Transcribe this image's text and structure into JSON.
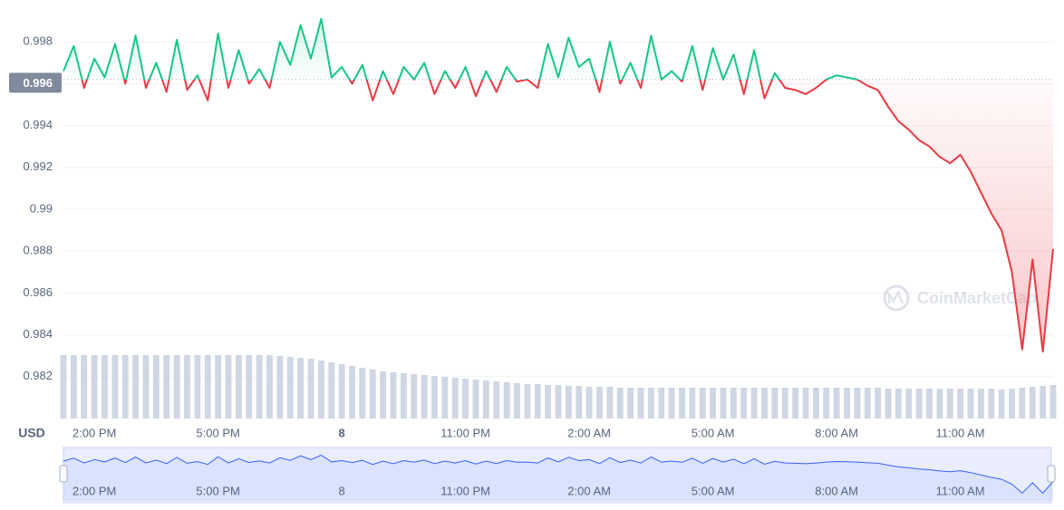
{
  "chart_data": {
    "type": "line",
    "currency": "USD",
    "watermark": "CoinMarketCap",
    "baseline": 0.9962,
    "up_color": "#16c784",
    "down_color": "#ea3943",
    "navigator_color": "#3861fb",
    "volume_color": "#cfd6e4",
    "ylim": [
      0.98,
      1.0
    ],
    "yticks": [
      0.982,
      0.984,
      0.986,
      0.988,
      0.99,
      0.992,
      0.994,
      0.996,
      0.998
    ],
    "highlight_tick": 0.996,
    "grid": true,
    "categories": [
      null,
      null,
      null,
      "2:00 PM",
      null,
      null,
      null,
      null,
      null,
      null,
      null,
      null,
      null,
      null,
      null,
      "5:00 PM",
      null,
      null,
      null,
      null,
      null,
      null,
      null,
      null,
      null,
      null,
      null,
      "8",
      null,
      null,
      null,
      null,
      null,
      null,
      null,
      null,
      null,
      null,
      null,
      "11:00 PM",
      null,
      null,
      null,
      null,
      null,
      null,
      null,
      null,
      null,
      null,
      null,
      "2:00 AM",
      null,
      null,
      null,
      null,
      null,
      null,
      null,
      null,
      null,
      null,
      null,
      "5:00 AM",
      null,
      null,
      null,
      null,
      null,
      null,
      null,
      null,
      null,
      null,
      null,
      "8:00 AM",
      null,
      null,
      null,
      null,
      null,
      null,
      null,
      null,
      null,
      null,
      null,
      "11:00 AM",
      null,
      null,
      null,
      null,
      null,
      null,
      null,
      null,
      null
    ],
    "values": [
      0.9966,
      0.9978,
      0.9958,
      0.9972,
      0.9963,
      0.9979,
      0.996,
      0.9983,
      0.9958,
      0.997,
      0.9956,
      0.9981,
      0.9957,
      0.9964,
      0.9952,
      0.9984,
      0.9958,
      0.9976,
      0.996,
      0.9967,
      0.9958,
      0.998,
      0.9969,
      0.9988,
      0.9972,
      0.9991,
      0.9963,
      0.9968,
      0.996,
      0.9969,
      0.9952,
      0.9966,
      0.9955,
      0.9968,
      0.9962,
      0.997,
      0.9955,
      0.9966,
      0.9958,
      0.9968,
      0.9954,
      0.9966,
      0.9956,
      0.9968,
      0.9961,
      0.9962,
      0.9958,
      0.9979,
      0.9963,
      0.9982,
      0.9968,
      0.9972,
      0.9956,
      0.998,
      0.996,
      0.997,
      0.9958,
      0.9983,
      0.9962,
      0.9966,
      0.9961,
      0.9978,
      0.9957,
      0.9977,
      0.9962,
      0.9974,
      0.9955,
      0.9976,
      0.9953,
      0.9965,
      0.9958,
      0.9957,
      0.9955,
      0.9958,
      0.9962,
      0.9964,
      0.9963,
      0.9962,
      0.9959,
      0.9957,
      0.9949,
      0.9942,
      0.9938,
      0.9933,
      0.993,
      0.9925,
      0.9922,
      0.9926,
      0.9918,
      0.9908,
      0.9898,
      0.989,
      0.987,
      0.9833,
      0.9876,
      0.9832,
      0.9881
    ],
    "volume": [
      70,
      70,
      70,
      70,
      70,
      70,
      70,
      70,
      70,
      70,
      70,
      70,
      70,
      70,
      70,
      70,
      70,
      70,
      70,
      70,
      70,
      69,
      68,
      67,
      66,
      64,
      62,
      60,
      58,
      56,
      54,
      52,
      51,
      50,
      49,
      48,
      47,
      46,
      45,
      44,
      43,
      42,
      41,
      40,
      39,
      38,
      38,
      37,
      37,
      36,
      36,
      35,
      35,
      35,
      34,
      34,
      34,
      34,
      34,
      34,
      34,
      34,
      34,
      34,
      34,
      34,
      34,
      34,
      34,
      34,
      34,
      34,
      34,
      34,
      34,
      34,
      34,
      34,
      34,
      34,
      33,
      33,
      33,
      33,
      33,
      33,
      33,
      33,
      33,
      33,
      33,
      32,
      33,
      34,
      35,
      36,
      37
    ]
  }
}
